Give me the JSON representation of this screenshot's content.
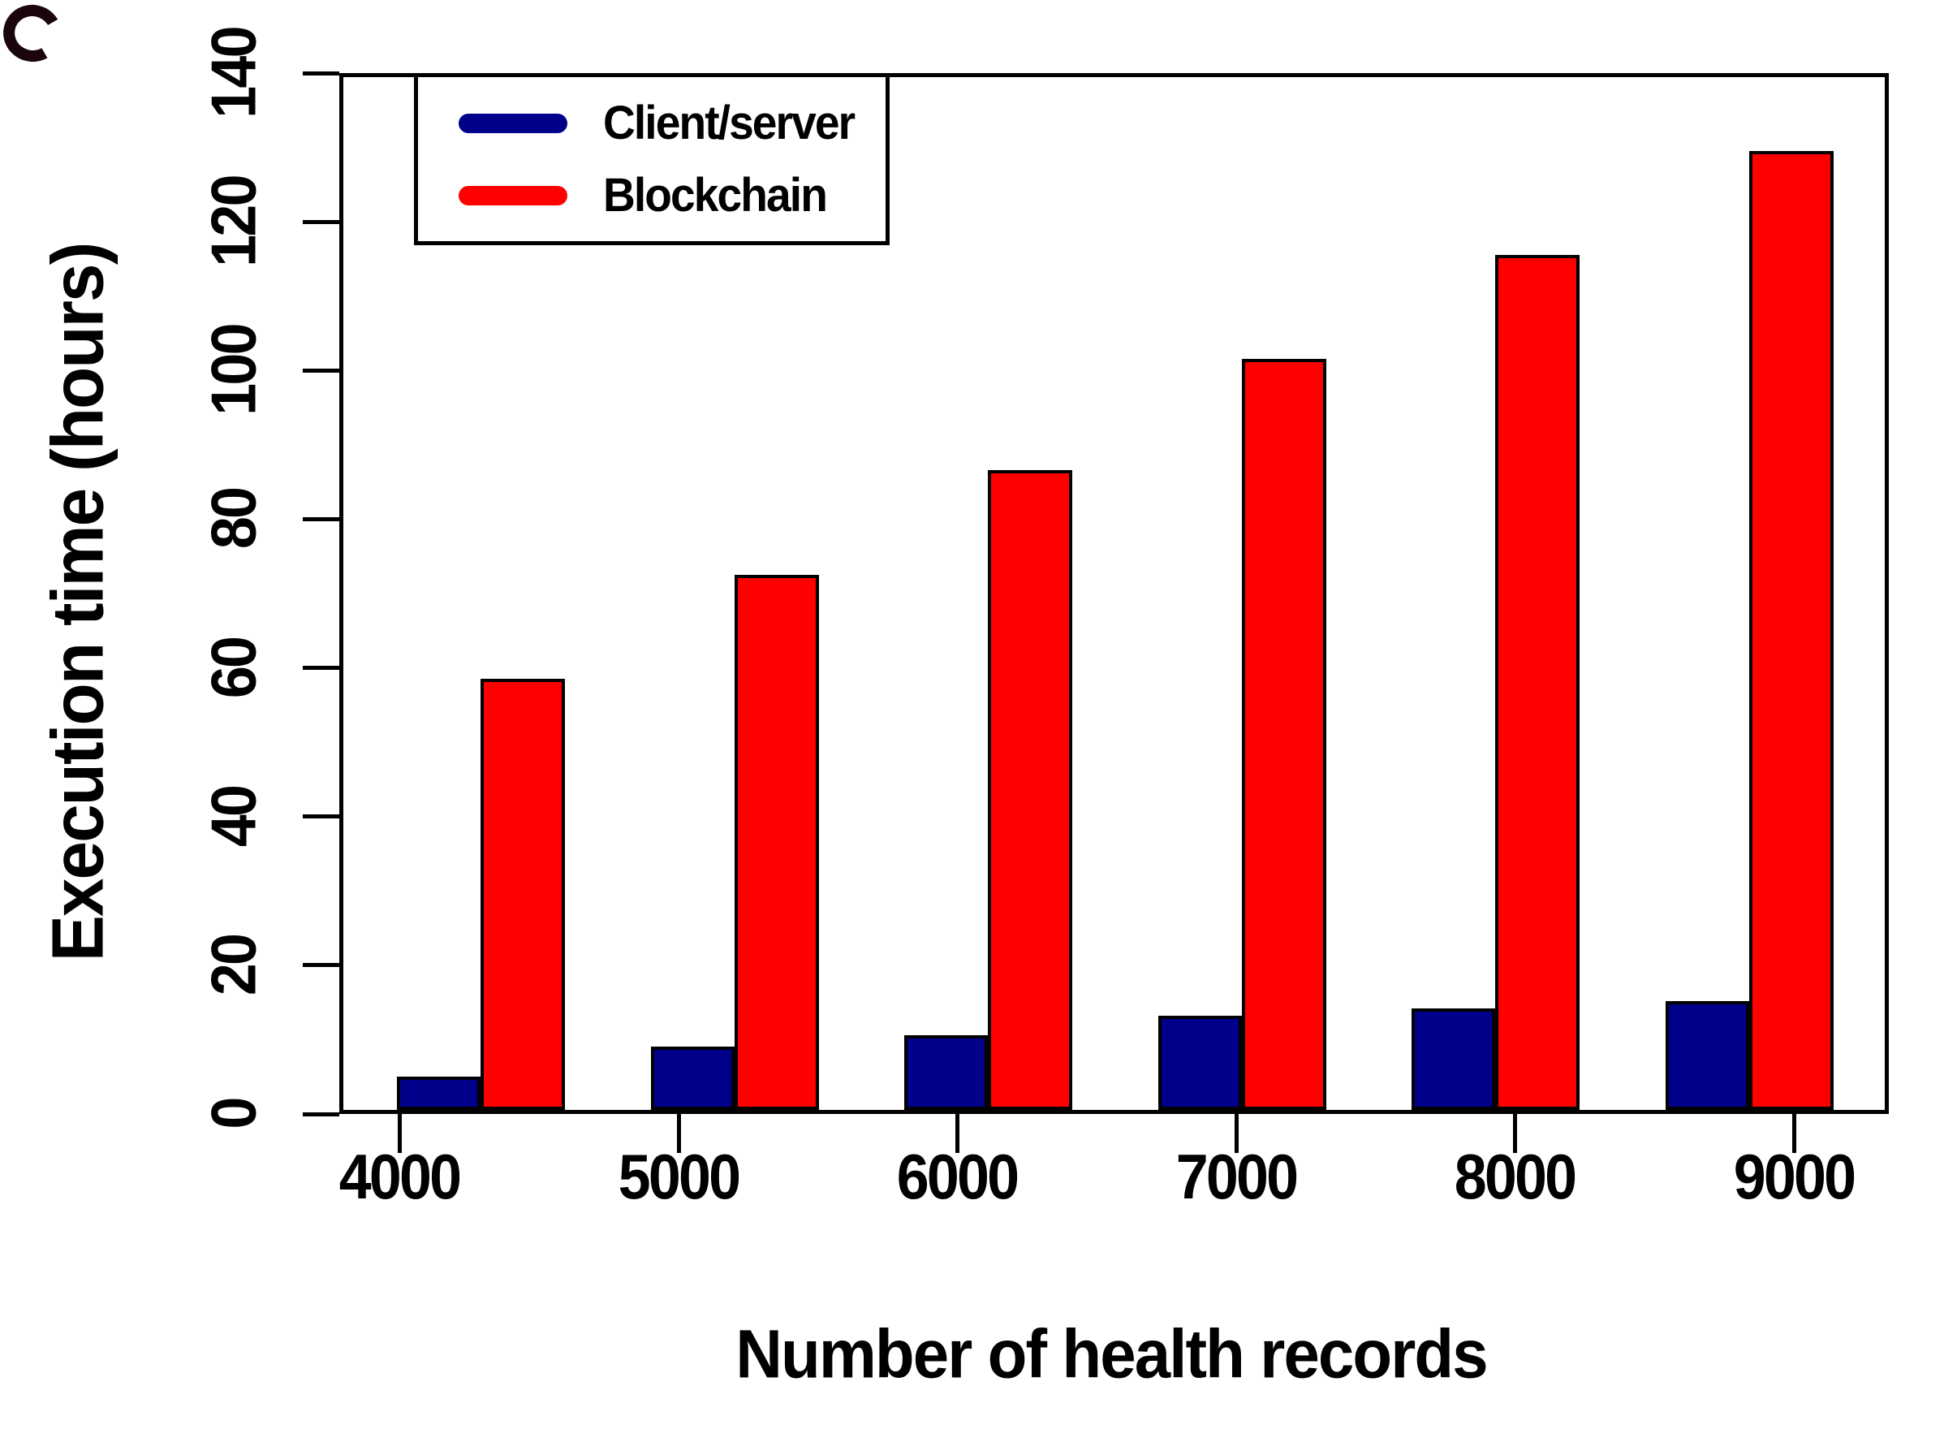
{
  "figure": {
    "y_axis_title": "Execution time (hours)",
    "x_axis_title": "Number of health records"
  },
  "chart_data": {
    "type": "bar",
    "title": "",
    "categories": [
      "4000",
      "5000",
      "6000",
      "7000",
      "8000",
      "9000"
    ],
    "series": [
      {
        "name": "Client/server",
        "color": "#00008B",
        "values": [
          4.5,
          8.5,
          10,
          12.7,
          13.7,
          14.6
        ]
      },
      {
        "name": "Blockchain",
        "color": "#FF0000",
        "values": [
          58,
          72,
          86,
          101,
          115,
          129
        ]
      }
    ],
    "xlabel": "Number of health records",
    "ylabel": "Execution time (hours)",
    "ylim": [
      0,
      140
    ],
    "yticks": [
      0,
      20,
      40,
      60,
      80,
      100,
      120,
      140
    ],
    "grid": false,
    "legend_position": "top-left",
    "bar_border_color": "#000000",
    "background_color": "#FFFFFF"
  }
}
